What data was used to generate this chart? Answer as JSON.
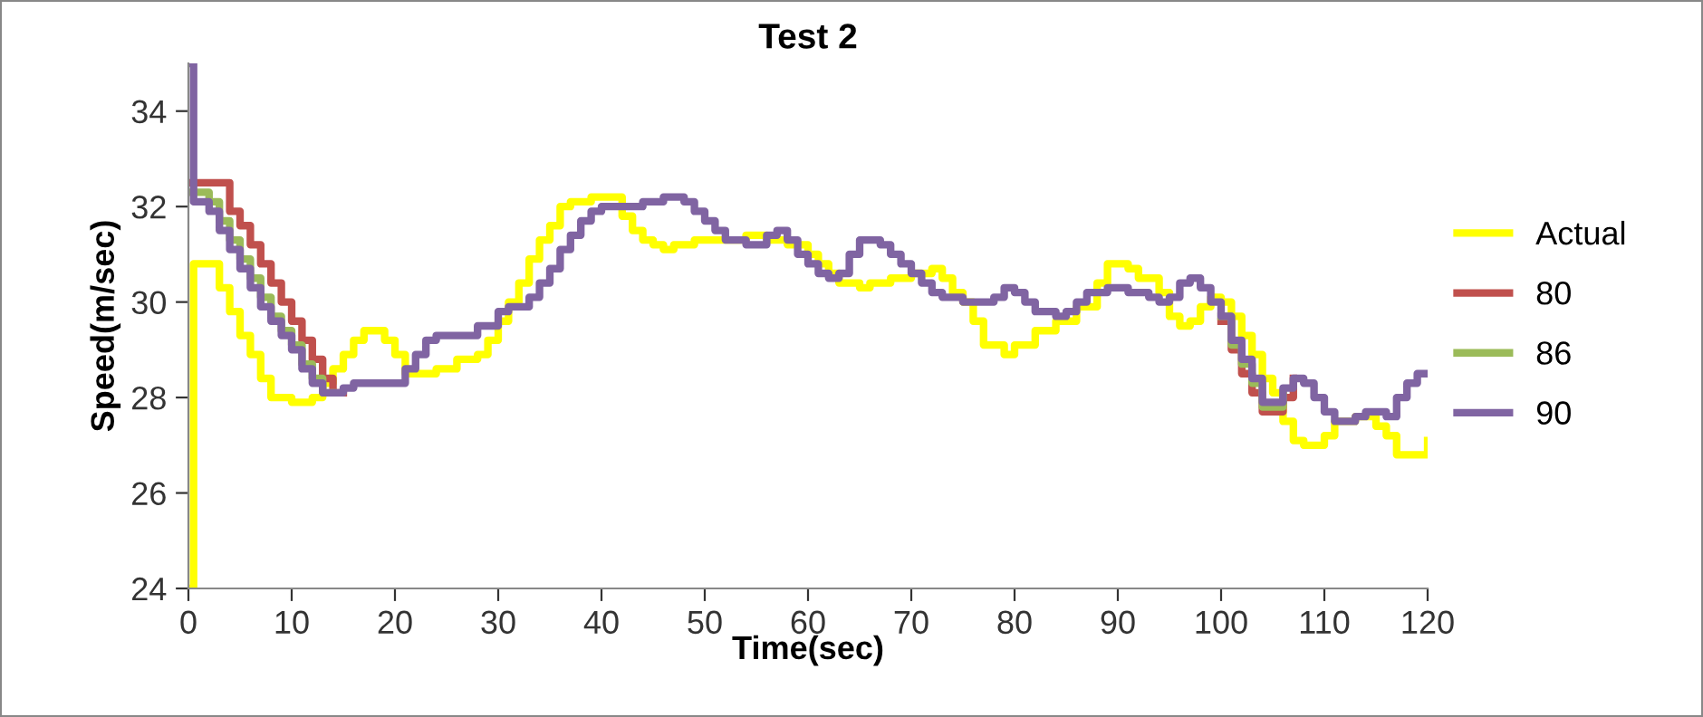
{
  "chart_data": {
    "type": "step",
    "title": "Test 2",
    "xlabel": "Time(sec)",
    "ylabel": "Speed(m/sec)",
    "xlim": [
      0,
      120
    ],
    "xticks": [
      0,
      10,
      20,
      30,
      40,
      50,
      60,
      70,
      80,
      90,
      100,
      110,
      120
    ],
    "ylim": [
      24,
      35
    ],
    "yticks": [
      24,
      26,
      28,
      30,
      32,
      34
    ],
    "grid": false,
    "legend": "right",
    "marker": "none",
    "line_style": "solid",
    "series": [
      {
        "name": "Actual",
        "color": "#ffff00",
        "x": [
          0,
          0.5,
          2,
          3,
          4,
          5,
          6,
          7,
          8,
          10,
          12,
          13,
          14,
          15,
          16,
          17,
          18,
          19,
          20,
          21,
          24,
          26,
          28,
          29,
          30,
          31,
          32,
          33,
          34,
          35,
          36,
          37,
          39,
          41,
          42,
          43,
          44,
          45,
          46,
          47,
          49,
          52,
          54,
          56,
          58,
          60,
          61,
          62,
          63,
          65,
          66,
          68,
          70,
          72,
          73,
          74,
          75,
          76,
          77,
          79,
          80,
          82,
          84,
          86,
          88,
          89,
          91,
          92,
          94,
          95,
          96,
          97,
          98,
          99,
          100,
          101,
          102,
          103,
          104,
          105,
          106,
          107,
          108,
          110,
          111,
          113,
          115,
          116,
          117,
          119,
          120
        ],
        "values": [
          24,
          30.8,
          30.8,
          30.3,
          29.8,
          29.3,
          28.9,
          28.4,
          28.0,
          27.9,
          28.0,
          28.3,
          28.6,
          28.9,
          29.2,
          29.4,
          29.4,
          29.2,
          28.9,
          28.5,
          28.6,
          28.8,
          28.9,
          29.2,
          29.6,
          30.0,
          30.4,
          30.9,
          31.3,
          31.6,
          32.0,
          32.1,
          32.2,
          32.2,
          31.8,
          31.5,
          31.3,
          31.2,
          31.1,
          31.2,
          31.3,
          31.3,
          31.4,
          31.3,
          31.2,
          31.0,
          30.8,
          30.6,
          30.4,
          30.3,
          30.4,
          30.5,
          30.6,
          30.7,
          30.5,
          30.2,
          30.0,
          29.6,
          29.1,
          28.9,
          29.1,
          29.4,
          29.6,
          29.9,
          30.4,
          30.8,
          30.7,
          30.5,
          30.2,
          29.7,
          29.5,
          29.6,
          29.9,
          30.1,
          30.0,
          29.7,
          29.3,
          28.9,
          28.4,
          28.1,
          27.5,
          27.1,
          27.0,
          27.2,
          27.5,
          27.6,
          27.4,
          27.2,
          26.8,
          26.8,
          27.1
        ]
      },
      {
        "name": "80",
        "color": "#c0504d",
        "x": [
          0,
          3,
          4,
          5,
          6,
          7,
          8,
          9,
          10,
          11,
          12,
          13,
          14,
          15,
          100,
          101,
          102,
          103,
          104,
          105,
          106,
          107
        ],
        "values": [
          32.5,
          32.5,
          31.9,
          31.6,
          31.2,
          30.8,
          30.4,
          30.0,
          29.6,
          29.2,
          28.8,
          28.4,
          28.1,
          null,
          29.6,
          29.0,
          28.5,
          28.1,
          27.7,
          27.7,
          28.0,
          28.4
        ]
      },
      {
        "name": "86",
        "color": "#9bbb59",
        "x": [
          0,
          2,
          3,
          4,
          5,
          6,
          7,
          8,
          9,
          10,
          11,
          12,
          13,
          14,
          100,
          101,
          102,
          103,
          104,
          105,
          106
        ],
        "values": [
          32.3,
          32.1,
          31.7,
          31.3,
          30.9,
          30.5,
          30.1,
          29.7,
          29.4,
          29.1,
          28.7,
          28.4,
          28.1,
          null,
          29.7,
          29.1,
          28.7,
          28.3,
          27.8,
          27.8,
          28.1
        ]
      },
      {
        "name": "90",
        "color": "#8064a2",
        "x": [
          0,
          0.5,
          2,
          3,
          4,
          5,
          6,
          7,
          8,
          9,
          10,
          11,
          12,
          13,
          14,
          15,
          16,
          18,
          20,
          21,
          22,
          23,
          24,
          27,
          28,
          30,
          31,
          32,
          33,
          34,
          35,
          36,
          37,
          38,
          39,
          40,
          42,
          44,
          46,
          48,
          49,
          50,
          51,
          52,
          54,
          56,
          57,
          58,
          59,
          60,
          61,
          62,
          63,
          64,
          65,
          67,
          68,
          69,
          70,
          71,
          72,
          73,
          75,
          77,
          78,
          79,
          80,
          81,
          82,
          84,
          85,
          86,
          87,
          89,
          91,
          93,
          94,
          95,
          96,
          97,
          98,
          99,
          100,
          101,
          102,
          103,
          104,
          105,
          106,
          107,
          108,
          109,
          110,
          111,
          113,
          114,
          115,
          116,
          117,
          118,
          119,
          120
        ],
        "values": [
          35.0,
          32.1,
          31.9,
          31.5,
          31.1,
          30.7,
          30.3,
          29.9,
          29.6,
          29.3,
          29.0,
          28.6,
          28.3,
          28.1,
          28.1,
          28.2,
          28.3,
          28.3,
          28.3,
          28.6,
          28.9,
          29.2,
          29.3,
          29.3,
          29.5,
          29.8,
          29.9,
          29.9,
          30.1,
          30.4,
          30.7,
          31.1,
          31.4,
          31.7,
          31.9,
          32.0,
          32.0,
          32.1,
          32.2,
          32.1,
          31.9,
          31.7,
          31.5,
          31.3,
          31.2,
          31.4,
          31.5,
          31.3,
          31.0,
          30.8,
          30.6,
          30.5,
          30.6,
          31.0,
          31.3,
          31.2,
          31.0,
          30.8,
          30.6,
          30.4,
          30.2,
          30.1,
          30.0,
          30.0,
          30.1,
          30.3,
          30.2,
          30.0,
          29.8,
          29.7,
          29.8,
          30.0,
          30.2,
          30.3,
          30.2,
          30.1,
          30.0,
          30.1,
          30.4,
          30.5,
          30.3,
          30.0,
          29.7,
          29.2,
          28.8,
          28.4,
          27.9,
          27.9,
          28.2,
          28.4,
          28.3,
          28.0,
          27.7,
          27.5,
          27.6,
          27.7,
          27.7,
          27.6,
          28.0,
          28.3,
          28.5,
          28.5
        ]
      }
    ]
  }
}
